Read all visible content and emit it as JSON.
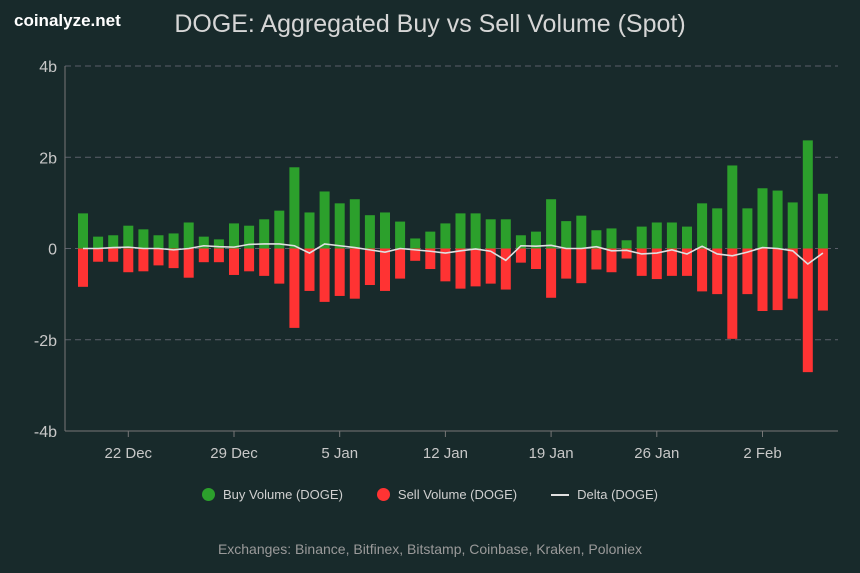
{
  "brand": "coinalyze.net",
  "chart_data": {
    "type": "bar",
    "title": "DOGE: Aggregated Buy vs Sell Volume (Spot)",
    "ylim": [
      -4,
      4
    ],
    "yticks": [
      {
        "v": 4,
        "label": "4b"
      },
      {
        "v": 2,
        "label": "2b"
      },
      {
        "v": 0,
        "label": "0"
      },
      {
        "v": -2,
        "label": "-2b"
      },
      {
        "v": -4,
        "label": "-4b"
      }
    ],
    "xticks": [
      "22 Dec",
      "29 Dec",
      "5 Jan",
      "12 Jan",
      "19 Jan",
      "26 Jan",
      "2 Feb"
    ],
    "x_start": "19 Dec",
    "x_end": "6 Feb",
    "grid": true,
    "legend_position": "bottom",
    "unit": "billion DOGE",
    "series": [
      {
        "name": "Buy Volume (DOGE)",
        "color": "#2ca02c",
        "values": [
          0.77,
          0.26,
          0.29,
          0.5,
          0.42,
          0.29,
          0.33,
          0.57,
          0.26,
          0.2,
          0.55,
          0.5,
          0.64,
          0.83,
          1.78,
          0.79,
          1.25,
          0.99,
          1.08,
          0.73,
          0.79,
          0.59,
          0.22,
          0.37,
          0.55,
          0.77,
          0.77,
          0.64,
          0.64,
          0.29,
          0.37,
          1.08,
          0.6,
          0.72,
          0.4,
          0.44,
          0.18,
          0.48,
          0.57,
          0.57,
          0.48,
          0.99,
          0.88,
          1.82,
          0.88,
          1.32,
          1.27,
          1.01,
          2.37,
          1.2
        ]
      },
      {
        "name": "Sell Volume (DOGE)",
        "color": "#ff3333",
        "values": [
          -0.84,
          -0.29,
          -0.29,
          -0.52,
          -0.5,
          -0.37,
          -0.43,
          -0.64,
          -0.3,
          -0.3,
          -0.58,
          -0.5,
          -0.6,
          -0.77,
          -1.74,
          -0.93,
          -1.17,
          -1.04,
          -1.1,
          -0.8,
          -0.93,
          -0.66,
          -0.27,
          -0.45,
          -0.72,
          -0.88,
          -0.83,
          -0.77,
          -0.9,
          -0.31,
          -0.45,
          -1.08,
          -0.66,
          -0.76,
          -0.46,
          -0.52,
          -0.22,
          -0.6,
          -0.67,
          -0.6,
          -0.6,
          -0.94,
          -1.0,
          -1.98,
          -1.0,
          -1.37,
          -1.35,
          -1.1,
          -2.71,
          -1.36
        ]
      },
      {
        "name": "Delta (DOGE)",
        "color": "#e0e0e0",
        "values": [
          0.0,
          0.0,
          0.02,
          0.03,
          0.0,
          0.0,
          -0.03,
          0.0,
          0.06,
          0.04,
          0.03,
          0.09,
          0.1,
          0.1,
          0.06,
          -0.1,
          0.1,
          0.06,
          0.02,
          -0.03,
          -0.08,
          0.0,
          -0.03,
          -0.06,
          -0.1,
          -0.05,
          -0.01,
          -0.06,
          -0.26,
          0.06,
          0.05,
          0.07,
          0.0,
          0.0,
          0.04,
          -0.05,
          -0.04,
          -0.12,
          -0.1,
          -0.03,
          -0.12,
          0.05,
          -0.12,
          -0.16,
          -0.08,
          0.02,
          0.0,
          -0.05,
          -0.34,
          -0.1
        ]
      }
    ]
  },
  "footer": "Exchanges: Binance, Bitfinex, Bitstamp, Coinbase, Kraken, Poloniex"
}
